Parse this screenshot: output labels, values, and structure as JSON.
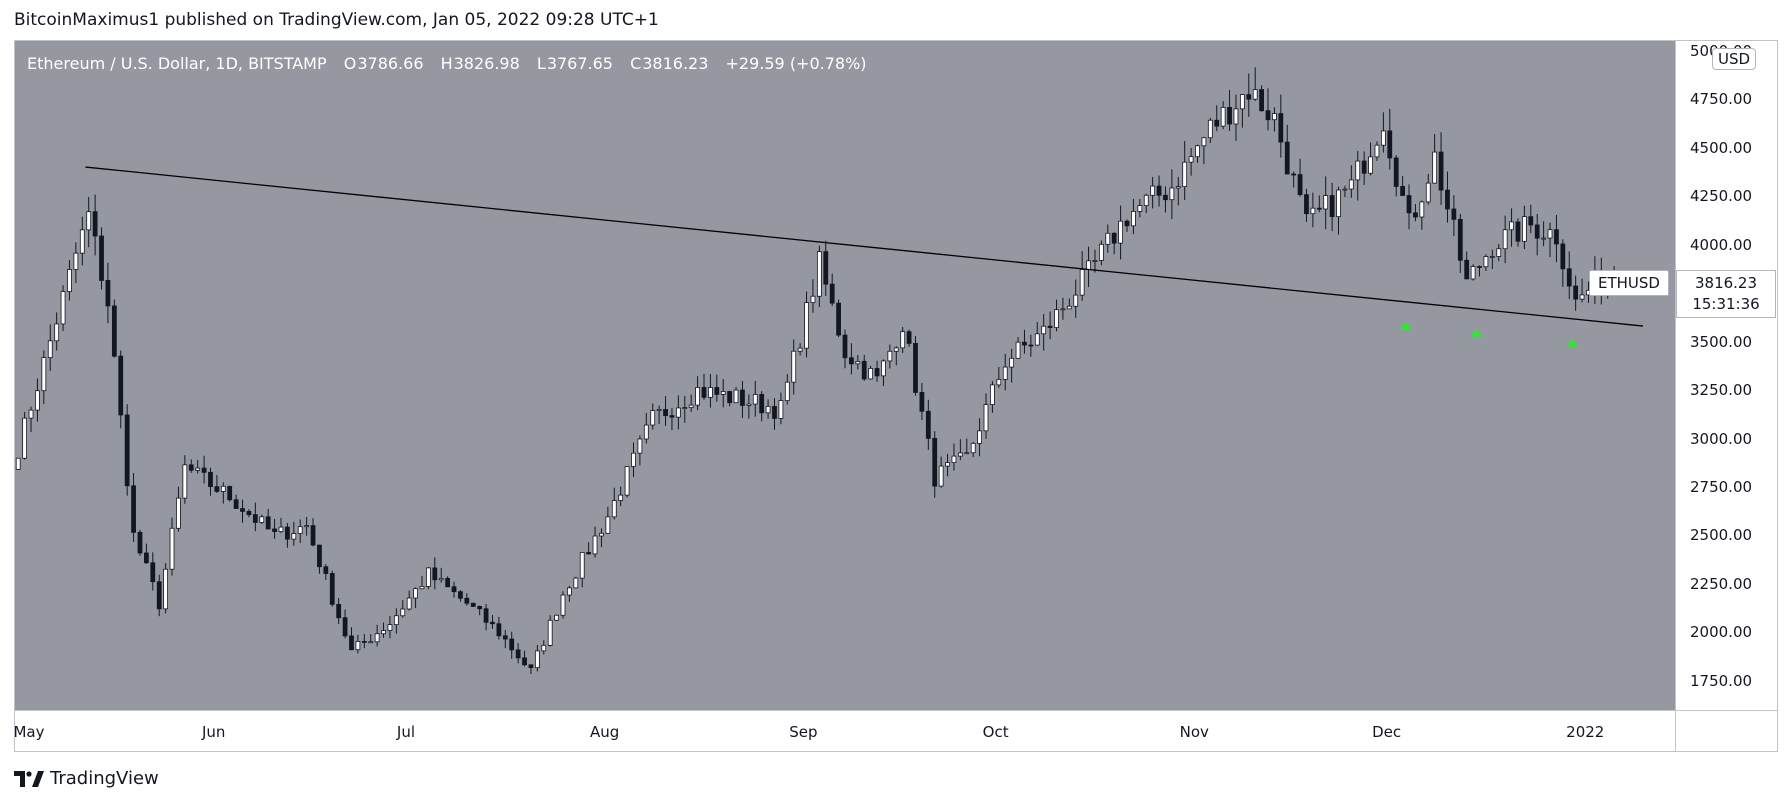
{
  "header": {
    "text": "BitcoinMaximus1 published on TradingView.com, Jan 05, 2022 09:28 UTC+1"
  },
  "legend": {
    "title": "Ethereum / U.S. Dollar, 1D, BITSTAMP",
    "o_label": "O",
    "o": "3786.66",
    "h_label": "H",
    "h": "3826.98",
    "l_label": "L",
    "l": "3767.65",
    "c_label": "C",
    "c": "3816.23",
    "change": "+29.59 (+0.78%)"
  },
  "price_axis": {
    "currency": "USD",
    "ticks": [
      "5000.00",
      "4750.00",
      "4500.00",
      "4250.00",
      "4000.00",
      "3750.00",
      "3500.00",
      "3250.00",
      "3000.00",
      "2750.00",
      "2500.00",
      "2250.00",
      "2000.00",
      "1750.00"
    ]
  },
  "time_axis": {
    "ticks": [
      "May",
      "Jun",
      "Jul",
      "Aug",
      "Sep",
      "Oct",
      "Nov",
      "Dec",
      "2022"
    ]
  },
  "symbol_tag": "ETHUSD",
  "last_price": {
    "price": "3816.23",
    "countdown": "15:31:36"
  },
  "footer": {
    "brand": "TradingView"
  },
  "colors": {
    "plot_background": "#9598a1",
    "up_candle": "#ffffff",
    "down_candle": "#131722",
    "wick": "#131722",
    "trendline": "#000000",
    "marker": "#2ee82e"
  },
  "chart_data": {
    "type": "candlestick",
    "symbol": "ETHUSD",
    "interval": "1D",
    "exchange": "BITSTAMP",
    "ylim": [
      1600,
      5050
    ],
    "x_range": [
      "2021-05-01",
      "2022-01-15"
    ],
    "grid": false,
    "ohlc_last": {
      "open": 3786.66,
      "high": 3826.98,
      "low": 3767.65,
      "close": 3816.23,
      "change": 29.59,
      "change_pct": 0.78
    },
    "approx_closes": [
      {
        "date": "2021-05-01",
        "close": 2950
      },
      {
        "date": "2021-05-06",
        "close": 3500
      },
      {
        "date": "2021-05-10",
        "close": 3950
      },
      {
        "date": "2021-05-12",
        "close": 4150
      },
      {
        "date": "2021-05-15",
        "close": 3700
      },
      {
        "date": "2021-05-19",
        "close": 2500
      },
      {
        "date": "2021-05-23",
        "close": 2150
      },
      {
        "date": "2021-05-27",
        "close": 2850
      },
      {
        "date": "2021-06-03",
        "close": 2700
      },
      {
        "date": "2021-06-10",
        "close": 2500
      },
      {
        "date": "2021-06-15",
        "close": 2550
      },
      {
        "date": "2021-06-22",
        "close": 1900
      },
      {
        "date": "2021-06-28",
        "close": 2050
      },
      {
        "date": "2021-07-04",
        "close": 2300
      },
      {
        "date": "2021-07-10",
        "close": 2150
      },
      {
        "date": "2021-07-15",
        "close": 2000
      },
      {
        "date": "2021-07-20",
        "close": 1800
      },
      {
        "date": "2021-07-25",
        "close": 2200
      },
      {
        "date": "2021-08-01",
        "close": 2600
      },
      {
        "date": "2021-08-08",
        "close": 3100
      },
      {
        "date": "2021-08-15",
        "close": 3250
      },
      {
        "date": "2021-08-22",
        "close": 3200
      },
      {
        "date": "2021-08-28",
        "close": 3150
      },
      {
        "date": "2021-09-03",
        "close": 3900
      },
      {
        "date": "2021-09-07",
        "close": 3450
      },
      {
        "date": "2021-09-12",
        "close": 3300
      },
      {
        "date": "2021-09-16",
        "close": 3600
      },
      {
        "date": "2021-09-21",
        "close": 2800
      },
      {
        "date": "2021-09-26",
        "close": 2900
      },
      {
        "date": "2021-10-02",
        "close": 3400
      },
      {
        "date": "2021-10-08",
        "close": 3550
      },
      {
        "date": "2021-10-15",
        "close": 3850
      },
      {
        "date": "2021-10-21",
        "close": 4150
      },
      {
        "date": "2021-10-28",
        "close": 4300
      },
      {
        "date": "2021-11-03",
        "close": 4600
      },
      {
        "date": "2021-11-09",
        "close": 4800
      },
      {
        "date": "2021-11-13",
        "close": 4650
      },
      {
        "date": "2021-11-18",
        "close": 4100
      },
      {
        "date": "2021-11-25",
        "close": 4300
      },
      {
        "date": "2021-11-30",
        "close": 4650
      },
      {
        "date": "2021-12-04",
        "close": 4100
      },
      {
        "date": "2021-12-08",
        "close": 4450
      },
      {
        "date": "2021-12-13",
        "close": 3800
      },
      {
        "date": "2021-12-17",
        "close": 4000
      },
      {
        "date": "2021-12-23",
        "close": 4100
      },
      {
        "date": "2021-12-27",
        "close": 4050
      },
      {
        "date": "2021-12-30",
        "close": 3700
      },
      {
        "date": "2022-01-02",
        "close": 3800
      },
      {
        "date": "2022-01-05",
        "close": 3816.23
      }
    ],
    "trendline": {
      "start": {
        "date": "2021-05-12",
        "price": 4400
      },
      "end": {
        "date": "2022-01-10",
        "price": 3580
      }
    },
    "markers": [
      {
        "date": "2021-12-04",
        "type": "up-arrow"
      },
      {
        "date": "2021-12-15",
        "type": "up-arrow"
      },
      {
        "date": "2021-12-30",
        "type": "up-arrow"
      }
    ]
  }
}
